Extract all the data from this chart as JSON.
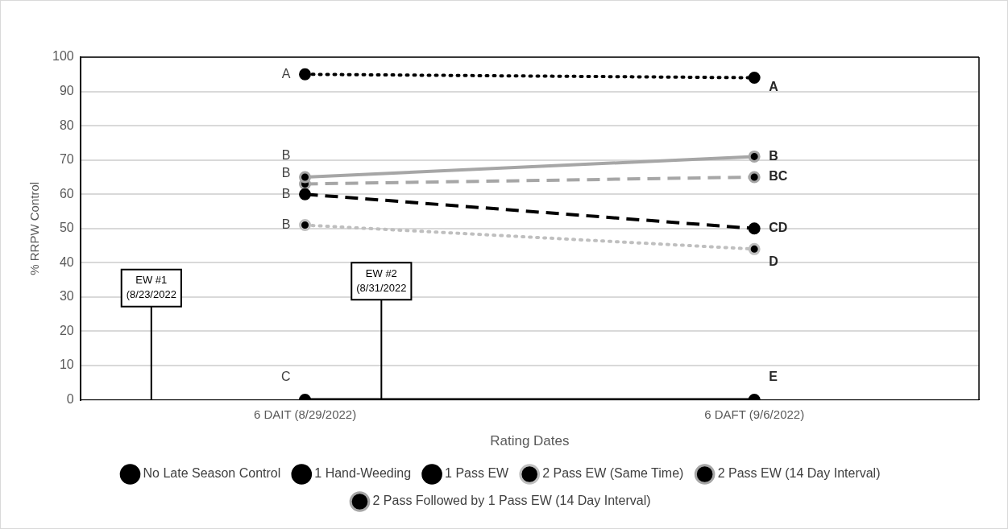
{
  "chart_data": {
    "type": "line",
    "xlabel": "Rating Dates",
    "ylabel": "% RRPW Control",
    "categories": [
      "6 DAIT (8/29/2022)",
      "6 DAFT (9/6/2022)"
    ],
    "series": [
      {
        "name": "No Late Season Control",
        "color": "#000000",
        "values": [
          0,
          0
        ],
        "line_style": "solid"
      },
      {
        "name": "1 Hand-Weeding",
        "color": "#000000",
        "values": [
          95,
          94
        ],
        "line_style": "dotted"
      },
      {
        "name": "1 Pass EW",
        "color": "#000000",
        "values": [
          60,
          50
        ],
        "line_style": "dashed"
      },
      {
        "name": "2 Pass EW (Same Time)",
        "color": "#bfbfbf",
        "values": [
          51,
          44
        ],
        "line_style": "dotted"
      },
      {
        "name": "2 Pass EW (14 Day Interval)",
        "color": "#a6a6a6",
        "values": [
          65,
          71
        ],
        "line_style": "solid"
      },
      {
        "name": "2 Pass Followed by 1 Pass EW (14 Day Interval)",
        "color": "#a6a6a6",
        "values": [
          63,
          65
        ],
        "line_style": "dashed"
      }
    ],
    "ylim": [
      0,
      100
    ],
    "yticks": [
      0,
      10,
      20,
      30,
      40,
      50,
      60,
      70,
      80,
      90,
      100
    ],
    "grid": "y",
    "legend": "bottom",
    "marker": "circle",
    "annotations": [
      {
        "text": "A",
        "x": "6 DAIT (8/29/2022)",
        "y": 95
      },
      {
        "text": "B",
        "x": "6 DAIT (8/29/2022)",
        "y": 65
      },
      {
        "text": "B",
        "x": "6 DAIT (8/29/2022)",
        "y": 63
      },
      {
        "text": "B",
        "x": "6 DAIT (8/29/2022)",
        "y": 60
      },
      {
        "text": "B",
        "x": "6 DAIT (8/29/2022)",
        "y": 51
      },
      {
        "text": "C",
        "x": "6 DAIT (8/29/2022)",
        "y": 0
      },
      {
        "text": "A",
        "x": "6 DAFT (9/6/2022)",
        "y": 94
      },
      {
        "text": "B",
        "x": "6 DAFT (9/6/2022)",
        "y": 71
      },
      {
        "text": "BC",
        "x": "6 DAFT (9/6/2022)",
        "y": 65
      },
      {
        "text": "CD",
        "x": "6 DAFT (9/6/2022)",
        "y": 50
      },
      {
        "text": "D",
        "x": "6 DAFT (9/6/2022)",
        "y": 44
      },
      {
        "text": "E",
        "x": "6 DAFT (9/6/2022)",
        "y": 0
      },
      "EW #1\n(8/23/2022",
      {
        "text": "EW #2\n(8/31/2022",
        "y": 0
      }
    ]
  }
}
